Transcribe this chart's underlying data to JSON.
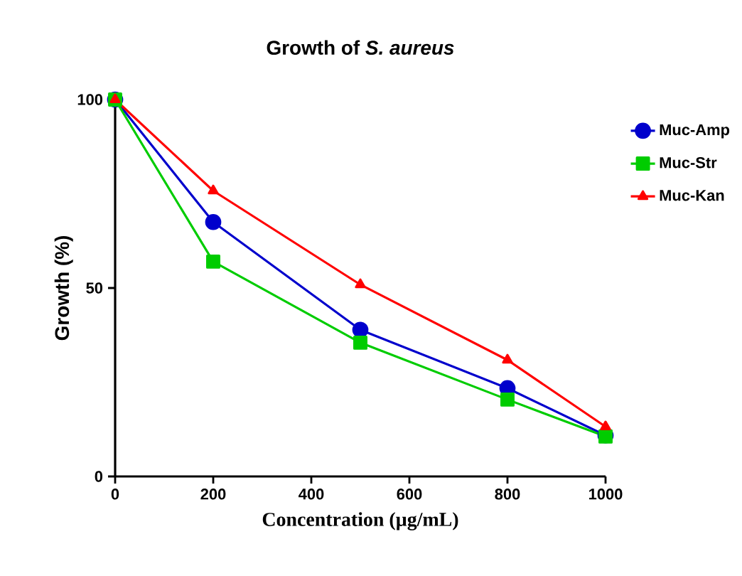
{
  "chart_data": {
    "type": "line",
    "title": "Growth of *S. aureus*",
    "xlabel": "Concentration (µg/mL)",
    "ylabel": "Growth (%)",
    "x": [
      0,
      200,
      500,
      800,
      1000
    ],
    "series": [
      {
        "name": "Muc-Amp",
        "color": "#0000cc",
        "marker": "circle",
        "values": [
          100,
          67.5,
          38.9,
          23.4,
          10.9
        ]
      },
      {
        "name": "Muc-Str",
        "color": "#00cc00",
        "marker": "square",
        "values": [
          100,
          57,
          35.5,
          20.4,
          10.6
        ]
      },
      {
        "name": "Muc-Kan",
        "color": "#ff0000",
        "marker": "triangle",
        "values": [
          100,
          75.8,
          50.9,
          30.9,
          13.2
        ]
      }
    ],
    "xlim": [
      0,
      1000
    ],
    "ylim": [
      0,
      100
    ],
    "xticks": [
      0,
      200,
      400,
      600,
      800,
      1000
    ],
    "yticks": [
      0,
      50,
      100
    ],
    "grid": false,
    "legend": "right",
    "line_style": "solid"
  }
}
